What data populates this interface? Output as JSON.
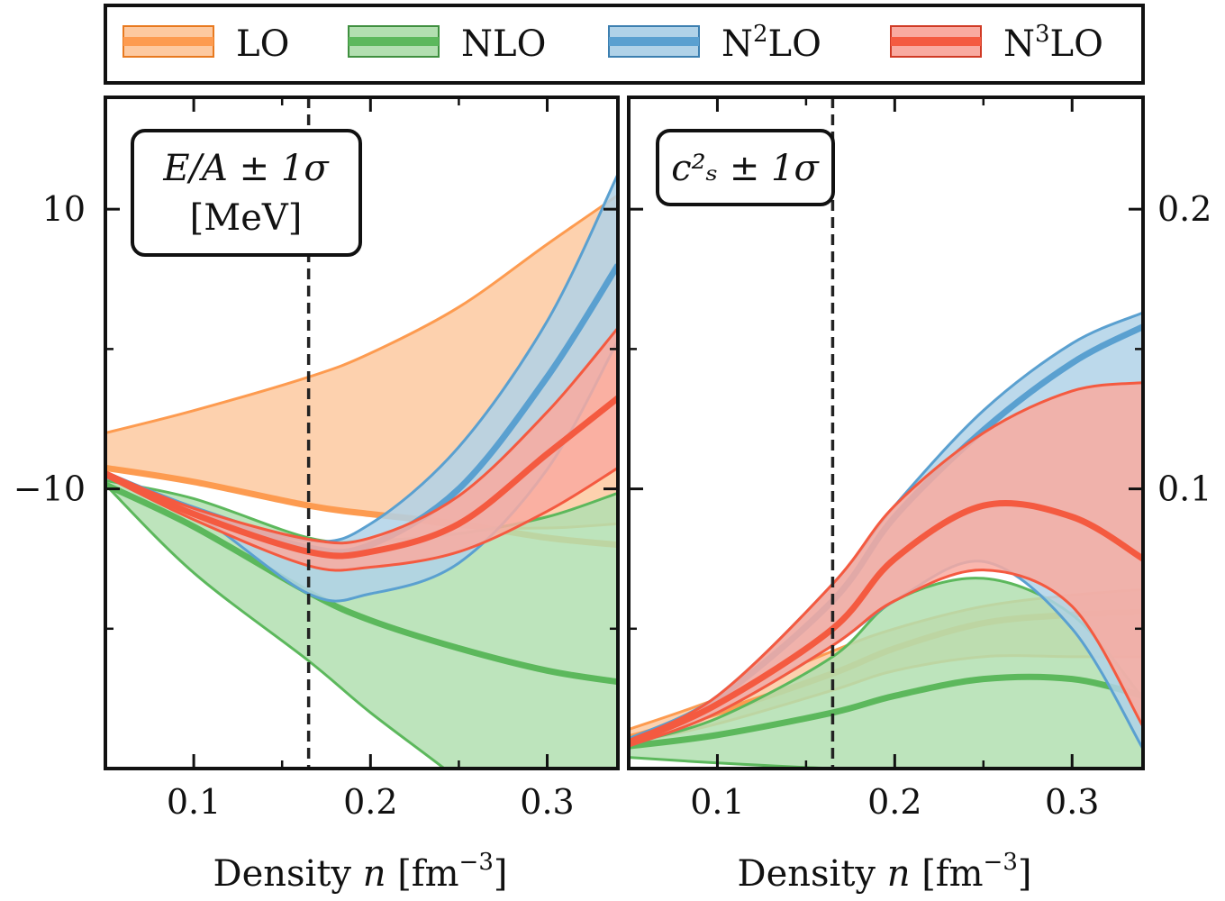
{
  "legend": {
    "items": [
      {
        "label": "LO",
        "sup": "",
        "suffix": "",
        "line_color": "#fd9b50",
        "fill_color": "#fdc9a0",
        "edge_color": "#e8791f"
      },
      {
        "label": "NLO",
        "sup": "",
        "suffix": "",
        "line_color": "#5cb85c",
        "fill_color": "#b2dfb0",
        "edge_color": "#3f8f3f"
      },
      {
        "label": "N",
        "sup": "2",
        "suffix": "LO",
        "line_color": "#5aa0d0",
        "fill_color": "#b0d2e8",
        "edge_color": "#3c7fb0"
      },
      {
        "label": "N",
        "sup": "3",
        "suffix": "LO",
        "line_color": "#f45a40",
        "fill_color": "#f9aaa0",
        "edge_color": "#d03a25"
      }
    ]
  },
  "chart_data": [
    {
      "type": "area",
      "panel": "left",
      "annotation": {
        "line1": "E/A ± 1σ",
        "line2": "[MeV]"
      },
      "xlabel_main": "Density ",
      "xlabel_var": "n",
      "xlabel_unit": " [fm",
      "xlabel_sup": "−3",
      "xlabel_close": "]",
      "xlim": [
        0.05,
        0.34
      ],
      "ylim": [
        -30,
        18
      ],
      "xticks": [
        {
          "value": 0.1,
          "label": "0.1"
        },
        {
          "value": 0.2,
          "label": "0.2"
        },
        {
          "value": 0.3,
          "label": "0.3"
        }
      ],
      "yticks": [
        {
          "value": 10,
          "label": "10"
        },
        {
          "value": -10,
          "label": "−10"
        }
      ],
      "minor_yticks": [
        0,
        -20
      ],
      "minor_xticks": [
        0.15,
        0.25
      ],
      "y_axis_side": "left",
      "vline_x": 0.165,
      "x": [
        0.05,
        0.1,
        0.165,
        0.2,
        0.25,
        0.3,
        0.34
      ],
      "series": [
        {
          "name": "LO",
          "center": [
            -8.5,
            -9.5,
            -11.2,
            -11.8,
            -12.5,
            -13.5,
            -14.0
          ],
          "lower": [
            -8.5,
            -9.5,
            -11.2,
            -11.8,
            -12.7,
            -12.8,
            -12.5
          ],
          "upper": [
            -6.0,
            -4.4,
            -2.0,
            -0.3,
            3.0,
            7.5,
            11.0
          ]
        },
        {
          "name": "NLO",
          "center": [
            -9.7,
            -12.7,
            -17.4,
            -19.4,
            -21.4,
            -23.0,
            -23.8
          ],
          "lower": [
            -9.7,
            -16.0,
            -22.3,
            -26.0,
            -30.8,
            -36.0,
            -40.0
          ],
          "upper": [
            -9.4,
            -10.7,
            -13.5,
            -13.7,
            -13.2,
            -12.0,
            -10.3
          ]
        },
        {
          "name": "N2LO",
          "center": [
            -9.0,
            -11.5,
            -14.2,
            -14.0,
            -10.0,
            -2.0,
            6.0
          ],
          "lower": [
            -9.1,
            -11.7,
            -17.5,
            -17.5,
            -15.3,
            -8.6,
            0.6
          ],
          "upper": [
            -8.8,
            -11.3,
            -13.7,
            -12.5,
            -7.0,
            2.0,
            12.5
          ]
        },
        {
          "name": "N3LO",
          "center": [
            -8.9,
            -11.8,
            -14.5,
            -14.5,
            -12.5,
            -7.5,
            -3.5
          ],
          "lower": [
            -9.1,
            -12.2,
            -15.5,
            -15.6,
            -14.5,
            -11.6,
            -8.5
          ],
          "upper": [
            -8.8,
            -11.4,
            -13.6,
            -13.5,
            -10.5,
            -4.5,
            1.5
          ]
        }
      ]
    },
    {
      "type": "area",
      "panel": "right",
      "annotation": {
        "line1": "c²ₛ ± 1σ",
        "line2": ""
      },
      "xlabel_main": "Density ",
      "xlabel_var": "n",
      "xlabel_unit": " [fm",
      "xlabel_sup": "−3",
      "xlabel_close": "]",
      "xlim": [
        0.05,
        0.34
      ],
      "ylim": [
        0.0,
        0.24
      ],
      "xticks": [
        {
          "value": 0.1,
          "label": "0.1"
        },
        {
          "value": 0.2,
          "label": "0.2"
        },
        {
          "value": 0.3,
          "label": "0.3"
        }
      ],
      "yticks": [
        {
          "value": 0.2,
          "label": "0.2"
        },
        {
          "value": 0.1,
          "label": "0.1"
        }
      ],
      "minor_yticks": [
        0.15,
        0.05
      ],
      "minor_xticks": [
        0.15,
        0.25
      ],
      "y_axis_side": "right",
      "vline_x": 0.165,
      "x": [
        0.05,
        0.1,
        0.165,
        0.2,
        0.25,
        0.3,
        0.34
      ],
      "series": [
        {
          "name": "LO",
          "center": [
            0.011,
            0.02,
            0.034,
            0.043,
            0.052,
            0.055,
            0.056
          ],
          "lower": [
            0.009,
            0.016,
            0.028,
            0.035,
            0.04,
            0.04,
            0.04
          ],
          "upper": [
            0.014,
            0.025,
            0.042,
            0.05,
            0.058,
            0.062,
            0.064
          ]
        },
        {
          "name": "NLO",
          "center": [
            0.008,
            0.012,
            0.02,
            0.026,
            0.032,
            0.032,
            0.026
          ],
          "lower": [
            0.004,
            0.002,
            0.0,
            0.0,
            0.0,
            0.0,
            0.0
          ],
          "upper": [
            0.009,
            0.018,
            0.04,
            0.06,
            0.068,
            0.055,
            0.025
          ]
        },
        {
          "name": "N2LO",
          "center": [
            0.01,
            0.025,
            0.06,
            0.09,
            0.121,
            0.145,
            0.158
          ],
          "lower": [
            0.008,
            0.02,
            0.044,
            0.06,
            0.074,
            0.05,
            0.007
          ],
          "upper": [
            0.01,
            0.026,
            0.066,
            0.094,
            0.128,
            0.152,
            0.163
          ]
        },
        {
          "name": "N3LO",
          "center": [
            0.009,
            0.023,
            0.05,
            0.075,
            0.094,
            0.09,
            0.075
          ],
          "lower": [
            0.008,
            0.02,
            0.044,
            0.06,
            0.071,
            0.058,
            0.015
          ],
          "upper": [
            0.01,
            0.026,
            0.066,
            0.094,
            0.12,
            0.135,
            0.138
          ]
        }
      ]
    }
  ]
}
